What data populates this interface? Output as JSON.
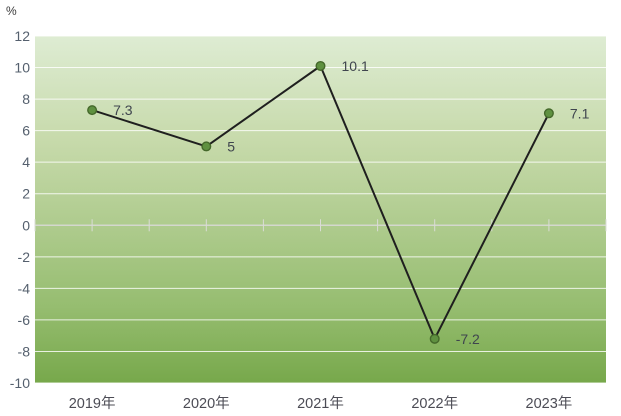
{
  "chart_data": {
    "type": "line",
    "title": "",
    "unit_label": "%",
    "xlabel": "",
    "ylabel": "%",
    "categories": [
      "2019年",
      "2020年",
      "2021年",
      "2022年",
      "2023年"
    ],
    "values": [
      7.3,
      5,
      10.1,
      -7.2,
      7.1
    ],
    "data_labels": [
      "7.3",
      "5",
      "10.1",
      "-7.2",
      "7.1"
    ],
    "ylim": [
      -10,
      12
    ],
    "ytick_step": 2,
    "yticks": [
      12,
      10,
      8,
      6,
      4,
      2,
      0,
      -2,
      -4,
      -6,
      -8,
      -10
    ],
    "grid": true,
    "legend": false,
    "series_name": "",
    "plot_background": "vertical green gradient"
  },
  "colors": {
    "page_bg": "#ffffff",
    "plot_bg_stops": [
      "#deecd3",
      "#c7daab",
      "#aecb8d",
      "#96bd70",
      "#77a84b"
    ],
    "plot_bg_positions": [
      0,
      0.3,
      0.55,
      0.78,
      1
    ],
    "gridline": "rgba(255,255,255,0.82)",
    "zero_axis_line": "#d4d6d0",
    "axis_tick": "#dadcd6",
    "series_line": "#1f1f1f",
    "marker_fill": "#5f9140",
    "marker_stroke": "#44682a",
    "data_label_text": "#3f454e",
    "ytick_text": "#55606e",
    "category_text": "#4c4c55",
    "unit_text": "#3a3a3a"
  }
}
